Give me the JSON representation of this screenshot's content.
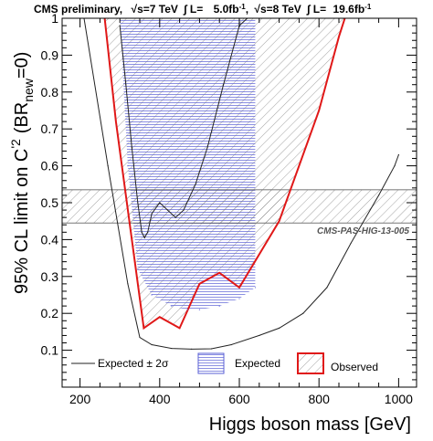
{
  "header": {
    "prefix": "CMS preliminary,",
    "sqrt_s_7": "s=7 TeV",
    "lumi_7_label": "L=",
    "lumi_7_value": "5.0fb",
    "lumi_exp": "-1",
    "sqrt_s_8": "s=8 TeV",
    "lumi_8_label": "L=",
    "lumi_8_value": "19.6fb"
  },
  "colors": {
    "expected_hatch": "#5a5fd6",
    "observed": "#e01818",
    "band": "#222222",
    "gray_hatch": "#808080"
  },
  "chart_data": {
    "type": "line",
    "title": "CMS preliminary, √s=7 TeV ∫ L= 5.0fb⁻¹, √s=8 TeV ∫ L= 19.6fb⁻¹",
    "xlabel": "Higgs boson mass [GeV]",
    "ylabel_parts": {
      "main": "95% CL limit on C",
      "sup": "'2",
      "paren_open": "(BR",
      "sub": "new",
      "tail": "=0)"
    },
    "xlim": [
      155,
      1045
    ],
    "ylim": [
      0,
      1
    ],
    "x_ticks": [
      200,
      400,
      600,
      800,
      1000
    ],
    "y_ticks": [
      0.1,
      0.2,
      0.3,
      0.4,
      0.5,
      0.6,
      0.7,
      0.8,
      0.9,
      1
    ],
    "x_tick_labels": [
      "200",
      "400",
      "600",
      "800",
      "1000"
    ],
    "y_tick_labels": [
      "0.1",
      "0.2",
      "0.3",
      "0.4",
      "0.5",
      "0.6",
      "0.7",
      "0.8",
      "0.9",
      "1"
    ],
    "annotation": "CMS-PAS-HIG-13-005",
    "excluded_band": [
      0.445,
      0.535
    ],
    "series": [
      {
        "name": "Observed",
        "style": "red line, hatched excluded region",
        "x": [
          262,
          290,
          360,
          400,
          450,
          500,
          550,
          600,
          700,
          800,
          850,
          865
        ],
        "y": [
          1.0,
          0.72,
          0.16,
          0.19,
          0.16,
          0.28,
          0.31,
          0.27,
          0.45,
          0.75,
          0.95,
          1.0
        ]
      },
      {
        "name": "Expected",
        "style": "hatched blue expected exclusion, inner (-2σ) boundary",
        "x": [
          300,
          320,
          345,
          380,
          430,
          470,
          500,
          550,
          600,
          640
        ],
        "y": [
          1.0,
          0.6,
          0.32,
          0.25,
          0.22,
          0.21,
          0.21,
          0.22,
          0.24,
          0.27
        ]
      },
      {
        "name": "Expected ± 2σ",
        "role": "median expected",
        "x": [
          300,
          315,
          330,
          345,
          355,
          362,
          370,
          380,
          400,
          420,
          440,
          460,
          490,
          520,
          560,
          600,
          620
        ],
        "y": [
          0.98,
          0.82,
          0.65,
          0.5,
          0.42,
          0.405,
          0.42,
          0.47,
          0.5,
          0.48,
          0.46,
          0.48,
          0.55,
          0.65,
          0.82,
          0.98,
          1.0
        ]
      },
      {
        "name": "Expected ± 2σ",
        "role": "+2σ",
        "x": [
          210,
          270,
          320,
          350,
          380,
          430,
          480,
          530,
          580,
          650,
          700,
          760,
          820,
          880,
          950,
          990,
          1000
        ],
        "y": [
          1.0,
          0.6,
          0.28,
          0.135,
          0.115,
          0.105,
          0.103,
          0.104,
          0.115,
          0.14,
          0.16,
          0.2,
          0.27,
          0.39,
          0.52,
          0.6,
          0.63
        ]
      }
    ],
    "legend": {
      "position": "bottom",
      "entries": [
        "Expected ± 2σ",
        "Expected",
        "Observed"
      ]
    }
  }
}
